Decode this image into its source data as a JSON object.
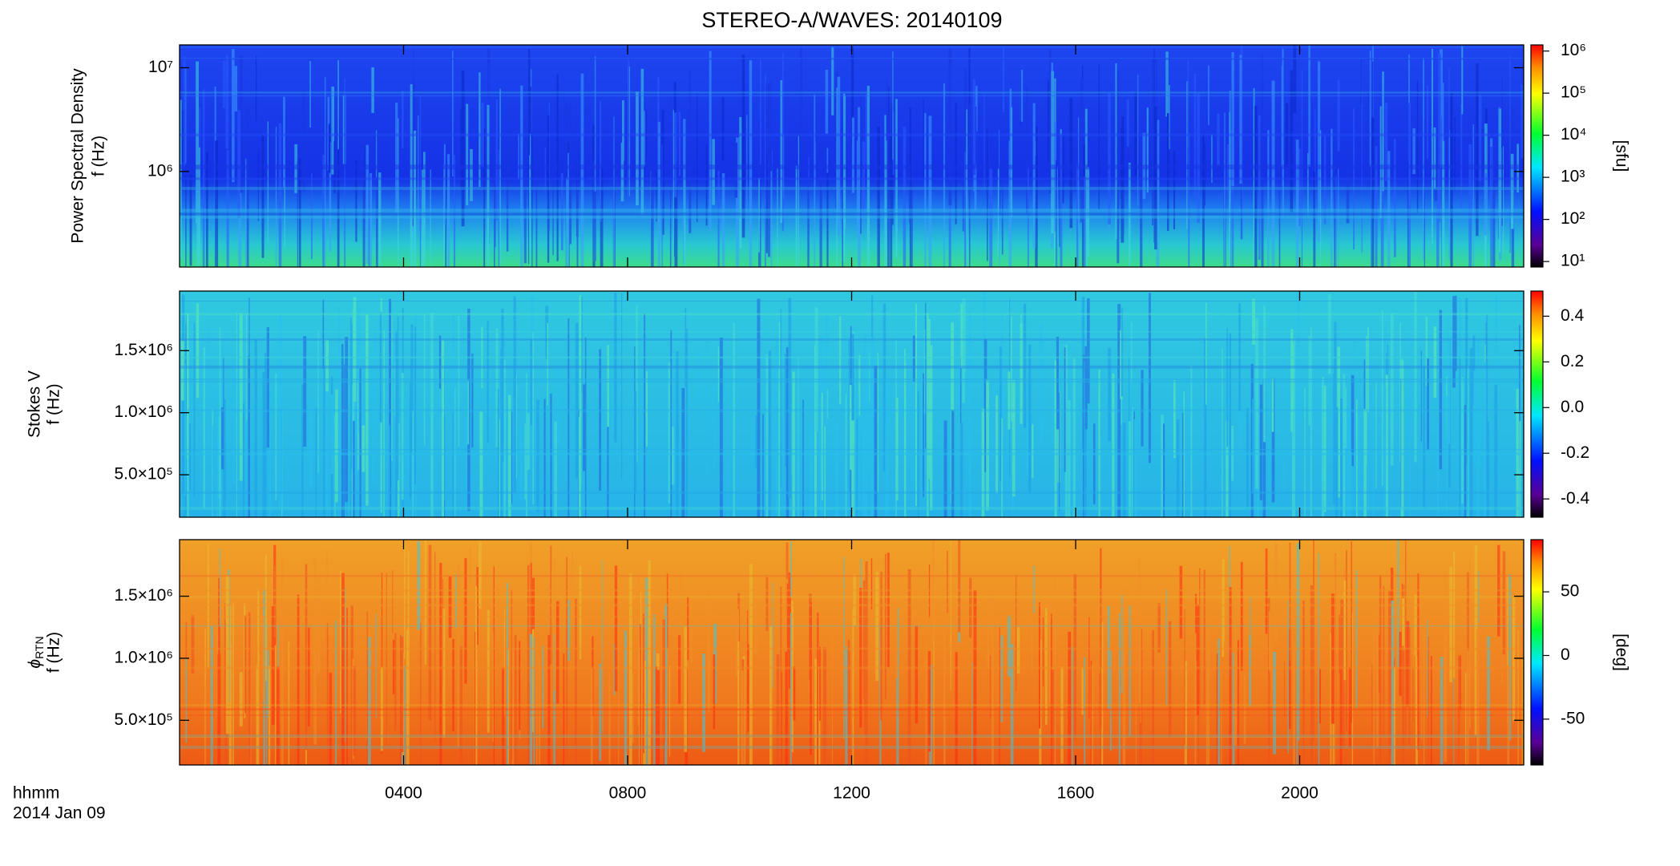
{
  "chart_data": [
    {
      "type": "spectrogram",
      "title": "STEREO-A/WAVES: 20140109",
      "ylabel": [
        "Power Spectral Density",
        "f (Hz)"
      ],
      "ylog": true,
      "ylim": [
        120000,
        16600000
      ],
      "yticks": [
        {
          "value": 1000000,
          "label": "10⁶"
        },
        {
          "value": 10000000,
          "label": "10⁷"
        }
      ],
      "colorbar": {
        "log": true,
        "lim": [
          7.4,
          1400000
        ],
        "label": "[sfu]",
        "ticks": [
          {
            "value": 10,
            "label": "10¹"
          },
          {
            "value": 100,
            "label": "10²"
          },
          {
            "value": 1000,
            "label": "10³"
          },
          {
            "value": 10000,
            "label": "10⁴"
          },
          {
            "value": 100000,
            "label": "10⁵"
          },
          {
            "value": 1000000,
            "label": "10⁶"
          }
        ]
      }
    },
    {
      "type": "spectrogram",
      "ylabel": [
        "Stokes V",
        "f (Hz)"
      ],
      "ylog": false,
      "ylim": [
        158000,
        1980000
      ],
      "yticks": [
        {
          "value": 500000,
          "label": "5.0×10⁵"
        },
        {
          "value": 1000000,
          "label": "1.0×10⁶"
        },
        {
          "value": 1500000,
          "label": "1.5×10⁶"
        }
      ],
      "colorbar": {
        "log": false,
        "lim": [
          -0.48,
          0.51
        ],
        "ticks": [
          -0.4,
          -0.2,
          {
            "value": 0,
            "label": "0.0"
          },
          0.2,
          0.4
        ]
      }
    },
    {
      "type": "spectrogram",
      "ylabel": [
        {
          "symbol": "ϕ",
          "subscript": "RTN"
        },
        "f (Hz)"
      ],
      "ylog": false,
      "ylim": [
        140000,
        1956000
      ],
      "yticks": [
        {
          "value": 500000,
          "label": "5.0×10⁵"
        },
        {
          "value": 1000000,
          "label": "1.0×10⁶"
        },
        {
          "value": 1500000,
          "label": "1.5×10⁶"
        }
      ],
      "colorbar": {
        "log": false,
        "lim": [
          -86,
          91
        ],
        "label": "[deg]",
        "ticks": [
          -50,
          0,
          50
        ]
      },
      "xlim": [
        0,
        24
      ],
      "xticks": [
        {
          "value": 4,
          "label": "0400"
        },
        {
          "value": 8,
          "label": "0800"
        },
        {
          "value": 12,
          "label": "1200"
        },
        {
          "value": 16,
          "label": "1600"
        },
        {
          "value": 20,
          "label": "2000"
        }
      ],
      "xlabel": [
        "hhmm",
        "2014 Jan 09"
      ]
    }
  ]
}
